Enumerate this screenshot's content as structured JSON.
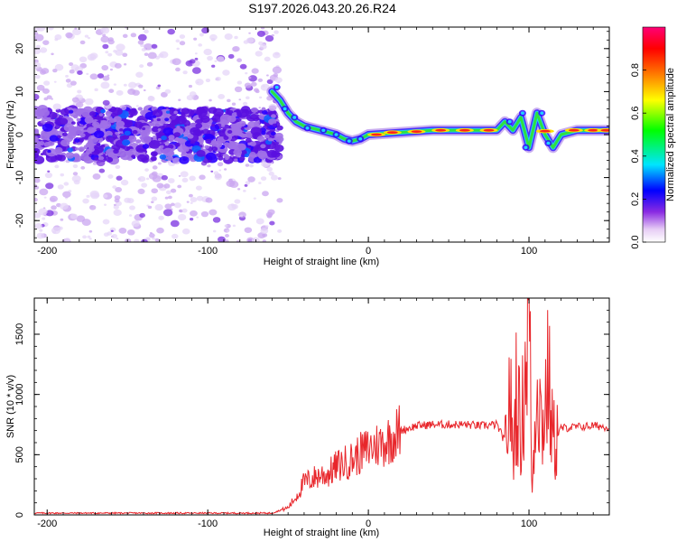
{
  "chart_data": [
    {
      "type": "heatmap",
      "title": "S197.2026.043.20.26.R24",
      "xlabel": "Height of straight line (km)",
      "ylabel": "Frequency (Hz)",
      "xlim": [
        -208,
        150
      ],
      "ylim": [
        -25,
        25
      ],
      "xticks": [
        -200,
        -100,
        0,
        100
      ],
      "yticks": [
        -20,
        -10,
        0,
        10,
        20
      ],
      "colorbar": {
        "label": "Normalized spectral amplitude",
        "range": [
          0,
          1
        ],
        "ticks": [
          "0.0",
          "0.2",
          "0.4",
          "0.6",
          "0.8"
        ],
        "colormap": "rainbow (white-purple-blue-cyan-green-yellow-red-magenta)"
      },
      "dominant_frequency_track": {
        "x_km": [
          -60,
          -55,
          -50,
          -45,
          -40,
          -35,
          -30,
          -25,
          -20,
          -15,
          -10,
          -5,
          0,
          20,
          40,
          60,
          80,
          85,
          90,
          95,
          100,
          105,
          110,
          115,
          120,
          130,
          140,
          150
        ],
        "freq_hz": [
          10,
          8,
          5,
          3,
          2,
          1.5,
          1,
          0.5,
          0,
          -1,
          -1.5,
          -1,
          0,
          0.5,
          1,
          1,
          1,
          3,
          1,
          4,
          -3,
          5,
          0,
          -3,
          0,
          1,
          1,
          1
        ]
      },
      "noise_region_km": [
        -208,
        -55
      ]
    },
    {
      "type": "line",
      "title": "",
      "xlabel": "Height of straight line (km)",
      "ylabel": "SNR (10 * v/v)",
      "xlim": [
        -208,
        150
      ],
      "ylim": [
        0,
        1800
      ],
      "xticks": [
        -200,
        -100,
        0,
        100
      ],
      "yticks": [
        0,
        500,
        1000,
        1500
      ],
      "line_color": "#e8262b",
      "series": [
        {
          "name": "SNR",
          "x": [
            -208,
            -150,
            -100,
            -60,
            -50,
            -45,
            -40,
            -35,
            -30,
            -25,
            -20,
            -15,
            -10,
            -5,
            0,
            5,
            10,
            15,
            20,
            25,
            30,
            40,
            50,
            60,
            70,
            80,
            86,
            88,
            90,
            92,
            95,
            98,
            100,
            102,
            105,
            108,
            112,
            115,
            120,
            130,
            140,
            150
          ],
          "y": [
            15,
            15,
            15,
            15,
            60,
            150,
            270,
            300,
            330,
            340,
            400,
            430,
            460,
            510,
            550,
            580,
            600,
            650,
            700,
            720,
            740,
            750,
            750,
            750,
            740,
            750,
            580,
            1100,
            450,
            1050,
            640,
            1300,
            1780,
            180,
            1250,
            700,
            1150,
            600,
            720,
            730,
            740,
            730
          ]
        }
      ]
    }
  ]
}
